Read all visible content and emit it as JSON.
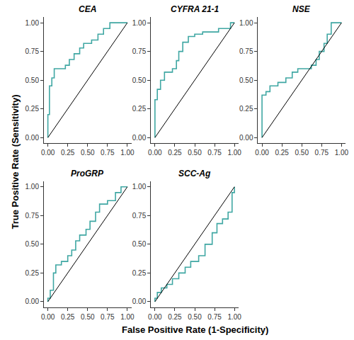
{
  "x_label": "False Positive Rate (1-Specificity)",
  "y_label": "True Positive Rate (Sensitivity)",
  "chart_data": [
    {
      "type": "line",
      "title": "CEA",
      "xlim": [
        -0.05,
        1.05
      ],
      "ylim": [
        -0.05,
        1.05
      ],
      "xticks": [
        {
          "value": 0,
          "label": "0.00"
        },
        {
          "value": 0.25,
          "label": "0.25"
        },
        {
          "value": 0.5,
          "label": "0.50"
        },
        {
          "value": 0.75,
          "label": "0.75"
        },
        {
          "value": 1,
          "label": "1.00"
        }
      ],
      "yticks": [
        {
          "value": 0,
          "label": "0.00"
        },
        {
          "value": 0.25,
          "label": "0.25"
        },
        {
          "value": 0.5,
          "label": "0.50"
        },
        {
          "value": 0.75,
          "label": "0.75"
        },
        {
          "value": 1,
          "label": "1.00"
        }
      ],
      "grid": false,
      "series": [
        {
          "color": "#3fa7a3",
          "x": [
            0,
            0,
            0.02,
            0.02,
            0.05,
            0.05,
            0.08,
            0.08,
            0.22,
            0.22,
            0.27,
            0.27,
            0.33,
            0.33,
            0.4,
            0.4,
            0.45,
            0.45,
            0.55,
            0.55,
            0.63,
            0.63,
            0.7,
            0.7,
            0.78,
            0.78,
            1
          ],
          "values": [
            0,
            0.2,
            0.2,
            0.45,
            0.45,
            0.52,
            0.52,
            0.6,
            0.6,
            0.63,
            0.63,
            0.68,
            0.68,
            0.73,
            0.73,
            0.78,
            0.78,
            0.82,
            0.82,
            0.85,
            0.85,
            0.9,
            0.9,
            0.95,
            0.95,
            1,
            1
          ]
        },
        {
          "color": "#000000",
          "x": [
            0,
            1
          ],
          "values": [
            0,
            1
          ]
        }
      ]
    },
    {
      "type": "line",
      "title": "CYFRA 21-1",
      "xlim": [
        -0.05,
        1.05
      ],
      "ylim": [
        -0.05,
        1.05
      ],
      "xticks": [
        {
          "value": 0,
          "label": "0.00"
        },
        {
          "value": 0.25,
          "label": "0.25"
        },
        {
          "value": 0.5,
          "label": "0.50"
        },
        {
          "value": 0.75,
          "label": "0.75"
        },
        {
          "value": 1,
          "label": "1.00"
        }
      ],
      "yticks": [
        {
          "value": 0,
          "label": "0.00"
        },
        {
          "value": 0.25,
          "label": "0.25"
        },
        {
          "value": 0.5,
          "label": "0.50"
        },
        {
          "value": 0.75,
          "label": "0.75"
        },
        {
          "value": 1,
          "label": "1.00"
        }
      ],
      "grid": false,
      "series": [
        {
          "color": "#3fa7a3",
          "x": [
            0,
            0,
            0.03,
            0.03,
            0.07,
            0.07,
            0.12,
            0.12,
            0.22,
            0.22,
            0.27,
            0.27,
            0.3,
            0.3,
            0.35,
            0.35,
            0.42,
            0.42,
            0.5,
            0.5,
            0.6,
            0.6,
            0.8,
            0.8,
            0.95,
            0.95,
            1
          ],
          "values": [
            0,
            0.33,
            0.33,
            0.42,
            0.42,
            0.5,
            0.5,
            0.57,
            0.57,
            0.6,
            0.6,
            0.67,
            0.67,
            0.75,
            0.75,
            0.83,
            0.83,
            0.88,
            0.88,
            0.9,
            0.9,
            0.92,
            0.92,
            0.95,
            0.95,
            1,
            1
          ]
        },
        {
          "color": "#000000",
          "x": [
            0,
            1
          ],
          "values": [
            0,
            1
          ]
        }
      ]
    },
    {
      "type": "line",
      "title": "NSE",
      "xlim": [
        -0.05,
        1.05
      ],
      "ylim": [
        -0.05,
        1.05
      ],
      "xticks": [
        {
          "value": 0,
          "label": "0.00"
        },
        {
          "value": 0.25,
          "label": "0.25"
        },
        {
          "value": 0.5,
          "label": "0.50"
        },
        {
          "value": 0.75,
          "label": "0.75"
        },
        {
          "value": 1,
          "label": "1.00"
        }
      ],
      "yticks": [
        {
          "value": 0,
          "label": "0.00"
        },
        {
          "value": 0.25,
          "label": "0.25"
        },
        {
          "value": 0.5,
          "label": "0.50"
        },
        {
          "value": 0.75,
          "label": "0.75"
        },
        {
          "value": 1,
          "label": "1.00"
        }
      ],
      "grid": false,
      "series": [
        {
          "color": "#3fa7a3",
          "x": [
            0,
            0,
            0.05,
            0.05,
            0.1,
            0.1,
            0.2,
            0.2,
            0.3,
            0.3,
            0.38,
            0.38,
            0.45,
            0.45,
            0.62,
            0.62,
            0.68,
            0.68,
            0.72,
            0.72,
            0.78,
            0.78,
            0.82,
            0.82,
            0.87,
            0.87,
            1
          ],
          "values": [
            0,
            0.37,
            0.37,
            0.4,
            0.4,
            0.45,
            0.45,
            0.48,
            0.48,
            0.52,
            0.52,
            0.57,
            0.57,
            0.6,
            0.6,
            0.63,
            0.63,
            0.68,
            0.68,
            0.75,
            0.75,
            0.82,
            0.82,
            0.9,
            0.9,
            1,
            1
          ]
        },
        {
          "color": "#000000",
          "x": [
            0,
            1
          ],
          "values": [
            0,
            1
          ]
        }
      ]
    },
    {
      "type": "line",
      "title": "ProGRP",
      "xlim": [
        -0.05,
        1.05
      ],
      "ylim": [
        -0.05,
        1.05
      ],
      "xticks": [
        {
          "value": 0,
          "label": "0.00"
        },
        {
          "value": 0.25,
          "label": "0.25"
        },
        {
          "value": 0.5,
          "label": "0.50"
        },
        {
          "value": 0.75,
          "label": "0.75"
        },
        {
          "value": 1,
          "label": "1.00"
        }
      ],
      "yticks": [
        {
          "value": 0,
          "label": "0.00"
        },
        {
          "value": 0.25,
          "label": "0.25"
        },
        {
          "value": 0.5,
          "label": "0.50"
        },
        {
          "value": 0.75,
          "label": "0.75"
        },
        {
          "value": 1,
          "label": "1.00"
        }
      ],
      "grid": false,
      "series": [
        {
          "color": "#3fa7a3",
          "x": [
            0,
            0,
            0.03,
            0.03,
            0.07,
            0.07,
            0.1,
            0.1,
            0.17,
            0.17,
            0.25,
            0.25,
            0.3,
            0.3,
            0.35,
            0.35,
            0.4,
            0.4,
            0.48,
            0.48,
            0.53,
            0.53,
            0.6,
            0.6,
            0.65,
            0.65,
            0.75,
            0.75,
            0.85,
            0.85,
            0.92,
            0.92,
            1
          ],
          "values": [
            0,
            0.03,
            0.03,
            0.1,
            0.1,
            0.25,
            0.25,
            0.32,
            0.32,
            0.35,
            0.35,
            0.4,
            0.4,
            0.45,
            0.45,
            0.53,
            0.53,
            0.58,
            0.58,
            0.63,
            0.63,
            0.7,
            0.7,
            0.78,
            0.78,
            0.85,
            0.85,
            0.88,
            0.88,
            0.95,
            0.95,
            1,
            1
          ]
        },
        {
          "color": "#000000",
          "x": [
            0,
            1
          ],
          "values": [
            0,
            1
          ]
        }
      ]
    },
    {
      "type": "line",
      "title": "SCC-Ag",
      "xlim": [
        -0.05,
        1.05
      ],
      "ylim": [
        -0.05,
        1.05
      ],
      "xticks": [
        {
          "value": 0,
          "label": "0.00"
        },
        {
          "value": 0.25,
          "label": "0.25"
        },
        {
          "value": 0.5,
          "label": "0.50"
        },
        {
          "value": 0.75,
          "label": "0.75"
        },
        {
          "value": 1,
          "label": "1.00"
        }
      ],
      "yticks": [
        {
          "value": 0,
          "label": "0.00"
        },
        {
          "value": 0.25,
          "label": "0.25"
        },
        {
          "value": 0.5,
          "label": "0.50"
        },
        {
          "value": 0.75,
          "label": "0.75"
        },
        {
          "value": 1,
          "label": "1.00"
        }
      ],
      "grid": false,
      "series": [
        {
          "color": "#3fa7a3",
          "x": [
            0,
            0,
            0.03,
            0.03,
            0.08,
            0.08,
            0.15,
            0.15,
            0.22,
            0.22,
            0.3,
            0.3,
            0.38,
            0.38,
            0.45,
            0.45,
            0.55,
            0.55,
            0.63,
            0.63,
            0.72,
            0.72,
            0.78,
            0.78,
            0.85,
            0.85,
            0.92,
            0.92,
            0.97,
            0.97,
            1,
            1
          ],
          "values": [
            0,
            0.03,
            0.03,
            0.08,
            0.08,
            0.12,
            0.12,
            0.15,
            0.15,
            0.2,
            0.2,
            0.25,
            0.25,
            0.3,
            0.3,
            0.35,
            0.35,
            0.4,
            0.4,
            0.5,
            0.5,
            0.6,
            0.6,
            0.68,
            0.68,
            0.72,
            0.72,
            0.78,
            0.78,
            0.95,
            0.95,
            1
          ]
        },
        {
          "color": "#000000",
          "x": [
            0,
            1
          ],
          "values": [
            0,
            1
          ]
        }
      ]
    }
  ]
}
